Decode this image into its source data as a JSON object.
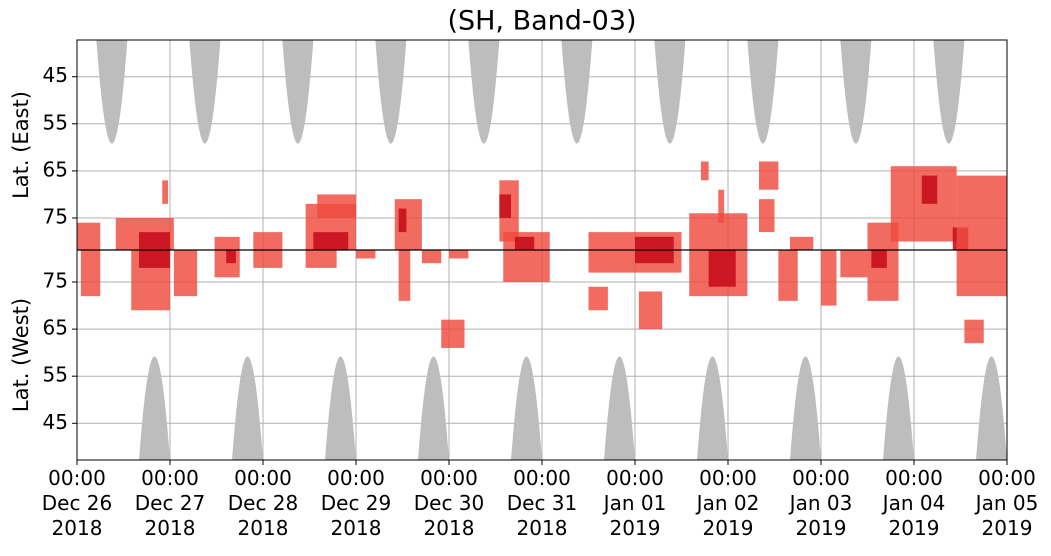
{
  "chart_data": {
    "type": "event-map",
    "title": "(SH, Band-03)",
    "ylabel_east": "Lat. (East)",
    "ylabel_west": "Lat. (West)",
    "xlim": [
      "2018-12-26T00:00",
      "2019-01-05T00:00"
    ],
    "xticks": [
      {
        "value": "2018-12-26T00:00",
        "label": "00:00\nDec 26\n2018"
      },
      {
        "value": "2018-12-27T00:00",
        "label": "00:00\nDec 27\n2018"
      },
      {
        "value": "2018-12-28T00:00",
        "label": "00:00\nDec 28\n2018"
      },
      {
        "value": "2018-12-29T00:00",
        "label": "00:00\nDec 29\n2018"
      },
      {
        "value": "2018-12-30T00:00",
        "label": "00:00\nDec 30\n2018"
      },
      {
        "value": "2018-12-31T00:00",
        "label": "00:00\nDec 31\n2018"
      },
      {
        "value": "2019-01-01T00:00",
        "label": "00:00\nJan 01\n2019"
      },
      {
        "value": "2019-01-02T00:00",
        "label": "00:00\nJan 02\n2019"
      },
      {
        "value": "2019-01-03T00:00",
        "label": "00:00\nJan 03\n2019"
      },
      {
        "value": "2019-01-04T00:00",
        "label": "00:00\nJan 04\n2019"
      },
      {
        "value": "2019-01-05T00:00",
        "label": "00:00\nJan 05\n2019"
      }
    ],
    "ylim_east": [
      37.2,
      81.8
    ],
    "ylim_west": [
      81.8,
      37.2
    ],
    "yticks_east": [
      45,
      55,
      65,
      75
    ],
    "yticks_west": [
      75,
      65,
      55,
      45
    ],
    "grid": true,
    "center_line": true,
    "shading": {
      "color": "#bdbdbd",
      "lat_edge": 59.2,
      "half_width_hours": 4,
      "east_centers": [
        "2018-12-26T09:00",
        "2018-12-27T09:00",
        "2018-12-28T09:00",
        "2018-12-29T09:00",
        "2018-12-30T09:00",
        "2018-12-31T09:00",
        "2019-01-01T09:00",
        "2019-01-02T09:00",
        "2019-01-03T09:00",
        "2019-01-04T09:00"
      ],
      "west_centers": [
        "2018-12-26T20:00",
        "2018-12-27T20:00",
        "2018-12-28T20:00",
        "2018-12-29T20:00",
        "2018-12-30T20:00",
        "2018-12-31T20:00",
        "2019-01-01T20:00",
        "2019-01-02T20:00",
        "2019-01-03T20:00",
        "2019-01-04T20:00"
      ]
    },
    "level_colors": [
      "#ef4a3d",
      "#c8101c"
    ],
    "cells": [
      {
        "t0": "2018-12-26T00:00",
        "t1": "2018-12-26T06:00",
        "side": "E",
        "lat0": 76,
        "lat1": 81.8,
        "level": 0
      },
      {
        "t0": "2018-12-26T01:00",
        "t1": "2018-12-26T06:00",
        "side": "W",
        "lat0": 72,
        "lat1": 81.8,
        "level": 0
      },
      {
        "t0": "2018-12-26T10:00",
        "t1": "2018-12-27T01:00",
        "side": "E",
        "lat0": 75,
        "lat1": 81.8,
        "level": 0
      },
      {
        "t0": "2018-12-26T14:00",
        "t1": "2018-12-27T00:00",
        "side": "W",
        "lat0": 69,
        "lat1": 81.8,
        "level": 0
      },
      {
        "t0": "2018-12-26T16:00",
        "t1": "2018-12-27T00:00",
        "side": "E",
        "lat0": 78,
        "lat1": 81.8,
        "level": 1
      },
      {
        "t0": "2018-12-26T16:00",
        "t1": "2018-12-27T00:00",
        "side": "W",
        "lat0": 78,
        "lat1": 81.8,
        "level": 1
      },
      {
        "t0": "2018-12-26T22:00",
        "t1": "2018-12-26T23:30",
        "side": "E",
        "lat0": 67,
        "lat1": 72,
        "level": 0
      },
      {
        "t0": "2018-12-27T01:00",
        "t1": "2018-12-27T07:00",
        "side": "W",
        "lat0": 72,
        "lat1": 81.8,
        "level": 0
      },
      {
        "t0": "2018-12-27T11:30",
        "t1": "2018-12-27T18:00",
        "side": "E",
        "lat0": 79,
        "lat1": 81.8,
        "level": 0
      },
      {
        "t0": "2018-12-27T11:30",
        "t1": "2018-12-27T18:00",
        "side": "W",
        "lat0": 76,
        "lat1": 81.8,
        "level": 0
      },
      {
        "t0": "2018-12-27T14:30",
        "t1": "2018-12-27T17:00",
        "side": "W",
        "lat0": 79,
        "lat1": 81.8,
        "level": 1
      },
      {
        "t0": "2018-12-27T21:30",
        "t1": "2018-12-28T05:00",
        "side": "E",
        "lat0": 78,
        "lat1": 81.8,
        "level": 0
      },
      {
        "t0": "2018-12-27T21:30",
        "t1": "2018-12-28T05:00",
        "side": "W",
        "lat0": 78,
        "lat1": 81.8,
        "level": 0
      },
      {
        "t0": "2018-12-28T11:00",
        "t1": "2018-12-29T00:00",
        "side": "E",
        "lat0": 72,
        "lat1": 81.8,
        "level": 0
      },
      {
        "t0": "2018-12-28T14:00",
        "t1": "2018-12-29T00:00",
        "side": "E",
        "lat0": 70,
        "lat1": 75,
        "level": 0
      },
      {
        "t0": "2018-12-28T13:00",
        "t1": "2018-12-28T22:00",
        "side": "E",
        "lat0": 78,
        "lat1": 81.8,
        "level": 1
      },
      {
        "t0": "2018-12-28T11:00",
        "t1": "2018-12-28T19:00",
        "side": "W",
        "lat0": 78,
        "lat1": 81.8,
        "level": 0
      },
      {
        "t0": "2018-12-29T00:00",
        "t1": "2018-12-29T05:00",
        "side": "W",
        "lat0": 80,
        "lat1": 81.8,
        "level": 0
      },
      {
        "t0": "2018-12-29T10:00",
        "t1": "2018-12-29T17:00",
        "side": "E",
        "lat0": 71,
        "lat1": 81.8,
        "level": 0
      },
      {
        "t0": "2018-12-29T11:00",
        "t1": "2018-12-29T13:00",
        "side": "E",
        "lat0": 73,
        "lat1": 78,
        "level": 1
      },
      {
        "t0": "2018-12-29T11:00",
        "t1": "2018-12-29T14:00",
        "side": "W",
        "lat0": 71,
        "lat1": 81.8,
        "level": 0
      },
      {
        "t0": "2018-12-29T17:00",
        "t1": "2018-12-29T22:00",
        "side": "W",
        "lat0": 79,
        "lat1": 81.8,
        "level": 0
      },
      {
        "t0": "2018-12-29T22:00",
        "t1": "2018-12-30T04:00",
        "side": "W",
        "lat0": 61,
        "lat1": 67,
        "level": 0
      },
      {
        "t0": "2018-12-30T00:00",
        "t1": "2018-12-30T05:00",
        "side": "W",
        "lat0": 80,
        "lat1": 81.8,
        "level": 0
      },
      {
        "t0": "2018-12-30T13:00",
        "t1": "2018-12-30T18:00",
        "side": "E",
        "lat0": 67,
        "lat1": 80,
        "level": 0
      },
      {
        "t0": "2018-12-30T13:00",
        "t1": "2018-12-30T16:00",
        "side": "E",
        "lat0": 70,
        "lat1": 75,
        "level": 1
      },
      {
        "t0": "2018-12-30T14:00",
        "t1": "2018-12-31T02:00",
        "side": "E",
        "lat0": 78,
        "lat1": 81.8,
        "level": 0
      },
      {
        "t0": "2018-12-30T14:00",
        "t1": "2018-12-31T02:00",
        "side": "W",
        "lat0": 75,
        "lat1": 81.8,
        "level": 0
      },
      {
        "t0": "2018-12-30T17:00",
        "t1": "2018-12-30T22:00",
        "side": "E",
        "lat0": 79,
        "lat1": 81.8,
        "level": 1
      },
      {
        "t0": "2018-12-31T12:00",
        "t1": "2019-01-01T12:00",
        "side": "E",
        "lat0": 78,
        "lat1": 81.8,
        "level": 0
      },
      {
        "t0": "2018-12-31T12:00",
        "t1": "2019-01-01T12:00",
        "side": "W",
        "lat0": 77,
        "lat1": 81.8,
        "level": 0
      },
      {
        "t0": "2019-01-01T00:00",
        "t1": "2019-01-01T10:00",
        "side": "E",
        "lat0": 79,
        "lat1": 81.8,
        "level": 1
      },
      {
        "t0": "2019-01-01T00:00",
        "t1": "2019-01-01T10:00",
        "side": "W",
        "lat0": 79,
        "lat1": 81.8,
        "level": 1
      },
      {
        "t0": "2018-12-31T12:00",
        "t1": "2018-12-31T17:00",
        "side": "W",
        "lat0": 69,
        "lat1": 74,
        "level": 0
      },
      {
        "t0": "2019-01-01T01:00",
        "t1": "2019-01-01T07:00",
        "side": "W",
        "lat0": 65,
        "lat1": 73,
        "level": 0
      },
      {
        "t0": "2019-01-01T14:00",
        "t1": "2019-01-02T05:00",
        "side": "E",
        "lat0": 74,
        "lat1": 81.8,
        "level": 0
      },
      {
        "t0": "2019-01-01T14:00",
        "t1": "2019-01-02T05:00",
        "side": "W",
        "lat0": 72,
        "lat1": 81.8,
        "level": 0
      },
      {
        "t0": "2019-01-01T19:00",
        "t1": "2019-01-02T02:00",
        "side": "W",
        "lat0": 74,
        "lat1": 81.8,
        "level": 1
      },
      {
        "t0": "2019-01-01T17:00",
        "t1": "2019-01-01T19:00",
        "side": "E",
        "lat0": 63,
        "lat1": 67,
        "level": 0
      },
      {
        "t0": "2019-01-01T21:30",
        "t1": "2019-01-01T23:00",
        "side": "E",
        "lat0": 69,
        "lat1": 76,
        "level": 0
      },
      {
        "t0": "2019-01-02T08:00",
        "t1": "2019-01-02T13:00",
        "side": "E",
        "lat0": 63,
        "lat1": 69,
        "level": 0
      },
      {
        "t0": "2019-01-02T08:00",
        "t1": "2019-01-02T12:00",
        "side": "E",
        "lat0": 71,
        "lat1": 78,
        "level": 0
      },
      {
        "t0": "2019-01-02T13:00",
        "t1": "2019-01-02T18:00",
        "side": "W",
        "lat0": 71,
        "lat1": 81.8,
        "level": 0
      },
      {
        "t0": "2019-01-02T16:00",
        "t1": "2019-01-02T22:00",
        "side": "E",
        "lat0": 79,
        "lat1": 81.8,
        "level": 0
      },
      {
        "t0": "2019-01-03T00:00",
        "t1": "2019-01-03T04:00",
        "side": "W",
        "lat0": 70,
        "lat1": 81.8,
        "level": 0
      },
      {
        "t0": "2019-01-03T05:00",
        "t1": "2019-01-03T12:00",
        "side": "W",
        "lat0": 76,
        "lat1": 81.8,
        "level": 0
      },
      {
        "t0": "2019-01-03T12:00",
        "t1": "2019-01-03T20:00",
        "side": "E",
        "lat0": 76,
        "lat1": 81.8,
        "level": 0
      },
      {
        "t0": "2019-01-03T12:00",
        "t1": "2019-01-03T20:00",
        "side": "W",
        "lat0": 71,
        "lat1": 81.8,
        "level": 0
      },
      {
        "t0": "2019-01-03T13:00",
        "t1": "2019-01-03T17:00",
        "side": "W",
        "lat0": 78,
        "lat1": 81.8,
        "level": 1
      },
      {
        "t0": "2019-01-03T18:00",
        "t1": "2019-01-04T11:00",
        "side": "E",
        "lat0": 64,
        "lat1": 80,
        "level": 0
      },
      {
        "t0": "2019-01-04T02:00",
        "t1": "2019-01-04T06:00",
        "side": "E",
        "lat0": 66,
        "lat1": 72,
        "level": 1
      },
      {
        "t0": "2019-01-04T10:00",
        "t1": "2019-01-04T14:00",
        "side": "E",
        "lat0": 77,
        "lat1": 81.8,
        "level": 1
      },
      {
        "t0": "2019-01-04T11:00",
        "t1": "2019-01-05T00:00",
        "side": "E",
        "lat0": 66,
        "lat1": 81.8,
        "level": 0
      },
      {
        "t0": "2019-01-04T11:00",
        "t1": "2019-01-05T00:00",
        "side": "W",
        "lat0": 72,
        "lat1": 81.8,
        "level": 0
      },
      {
        "t0": "2019-01-04T13:00",
        "t1": "2019-01-04T18:00",
        "side": "W",
        "lat0": 62,
        "lat1": 67,
        "level": 0
      }
    ]
  }
}
